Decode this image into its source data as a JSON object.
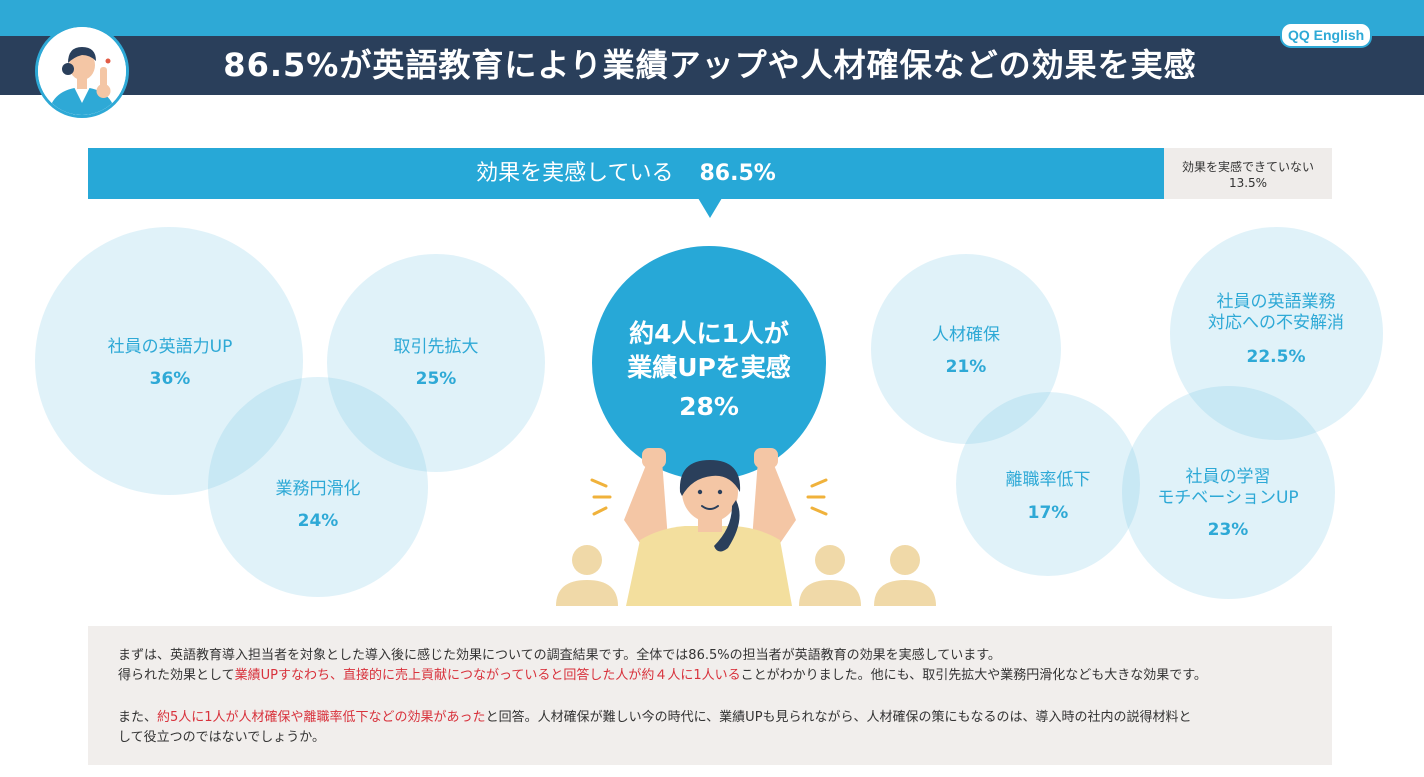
{
  "header": {
    "title": "86.5%が英語教育により業績アップや人材確保などの効果を実感",
    "logo": "QQ English"
  },
  "colors": {
    "accent": "#27a8d7",
    "header_bg": "#2a3f5b",
    "highlight": "#d8323c",
    "panel": "#f1eeec"
  },
  "chart_data": [
    {
      "type": "bar",
      "orientation": "horizontal-stacked",
      "categories": [
        "効果を実感している",
        "効果を実感できていない"
      ],
      "values": [
        86.5,
        13.5
      ],
      "labels": {
        "yes_text": "効果を実感している",
        "yes_value": "86.5%",
        "no_text": "効果を実感できていない",
        "no_value": "13.5%"
      }
    },
    {
      "type": "bubble",
      "items": [
        {
          "name": "社員の英語力UP",
          "value": 36,
          "display": "36%"
        },
        {
          "name": "取引先拡大",
          "value": 25,
          "display": "25%"
        },
        {
          "name": "業務円滑化",
          "value": 24,
          "display": "24%"
        },
        {
          "name": "業績UP",
          "value": 28,
          "display": "28%"
        },
        {
          "name": "人材確保",
          "value": 21,
          "display": "21%"
        },
        {
          "name": "社員の英語業務対応への不安解消",
          "value": 22.5,
          "display": "22.5%"
        },
        {
          "name": "離職率低下",
          "value": 17,
          "display": "17%"
        },
        {
          "name": "社員の学習モチベーションUP",
          "value": 23,
          "display": "23%"
        }
      ]
    }
  ],
  "bubbles": {
    "english": {
      "label": "社員の英語力UP",
      "value": "36%"
    },
    "partners": {
      "label": "取引先拡大",
      "value": "25%"
    },
    "ops": {
      "label": "業務円滑化",
      "value": "24%"
    },
    "talent": {
      "label": "人材確保",
      "value": "21%"
    },
    "anxiety": {
      "label1": "社員の英語業務",
      "label2": "対応への不安解消",
      "value": "22.5%"
    },
    "turnover": {
      "label": "離職率低下",
      "value": "17%"
    },
    "motivation": {
      "label1": "社員の学習",
      "label2": "モチベーションUP",
      "value": "23%"
    },
    "main": {
      "line1": "約4人に1人が",
      "line2": "業績UPを実感",
      "value": "28%"
    }
  },
  "summary": {
    "p1_a": "まずは、英語教育導入担当者を対象とした導入後に感じた効果についての調査結果です。全体では86.5%の担当者が英語教育の効果を実感しています。",
    "p1_b": "得られた効果として",
    "p1_red": "業績UPすなわち、直接的に売上貢献につながっていると回答した人が約４人に1人いる",
    "p1_c": "ことがわかりました。他にも、取引先拡大や業務円滑化なども大きな効果です。",
    "p2_a": "また、",
    "p2_red": "約5人に1人が人材確保や離職率低下などの効果があった",
    "p2_b": "と回答。人材確保が難しい今の時代に、業績UPも見られながら、人材確保の策にもなるのは、導入時の社内の説得材料と",
    "p2_c": "して役立つのではないでしょうか。"
  }
}
